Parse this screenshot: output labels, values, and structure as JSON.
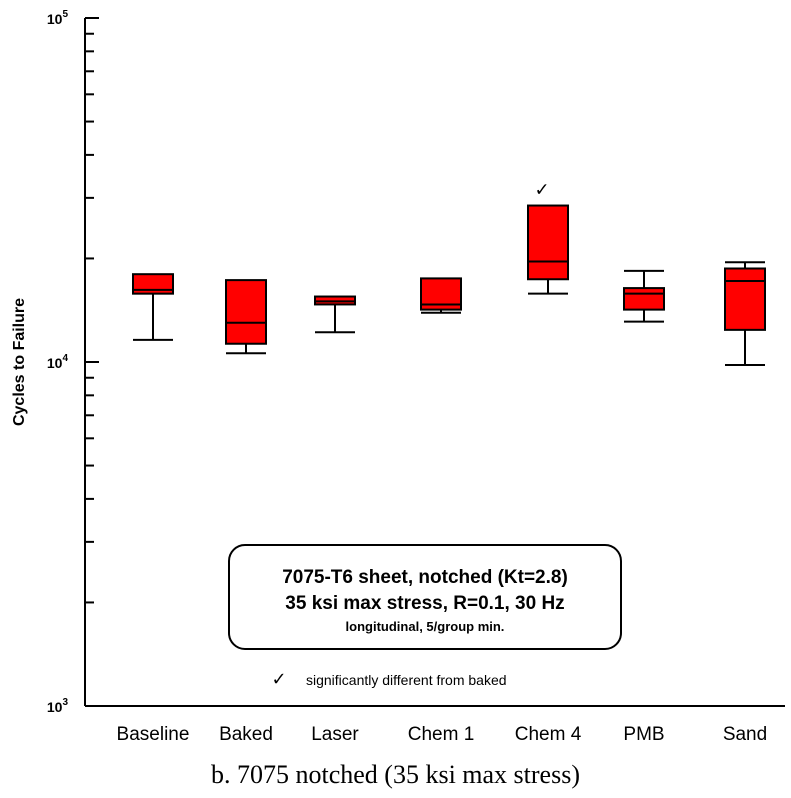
{
  "chart_data": {
    "type": "box",
    "ylabel": "Cycles to Failure",
    "yscale": "log",
    "ylim": [
      1000,
      100000
    ],
    "y_tick_labels": [
      {
        "value": 1000,
        "base": "10",
        "exp": "3"
      },
      {
        "value": 10000,
        "base": "10",
        "exp": "4"
      },
      {
        "value": 100000,
        "base": "10",
        "exp": "5"
      }
    ],
    "categories": [
      "Baseline",
      "Baked",
      "Laser",
      "Chem 1",
      "Chem 4",
      "PMB",
      "Sand"
    ],
    "boxes": [
      {
        "whisker_low": 11600,
        "q1": 15800,
        "median": 16200,
        "q3": 18000,
        "whisker_high": 18000
      },
      {
        "whisker_low": 10600,
        "q1": 11300,
        "median": 13000,
        "q3": 17300,
        "whisker_high": 17300
      },
      {
        "whisker_low": 12200,
        "q1": 14700,
        "median": 15000,
        "q3": 15500,
        "whisker_high": 15500
      },
      {
        "whisker_low": 13900,
        "q1": 14200,
        "median": 14700,
        "q3": 17500,
        "whisker_high": 17500
      },
      {
        "whisker_low": 15800,
        "q1": 17400,
        "median": 19600,
        "q3": 28500,
        "whisker_high": 28500
      },
      {
        "whisker_low": 13100,
        "q1": 14200,
        "median": 15800,
        "q3": 16400,
        "whisker_high": 18400
      },
      {
        "whisker_low": 9800,
        "q1": 12400,
        "median": 17200,
        "q3": 18700,
        "whisker_high": 19500
      }
    ],
    "significant": [
      "Chem 4"
    ],
    "box_color": "#ff0000",
    "check_symbol": "✓",
    "info_box": {
      "line1": "7075-T6 sheet, notched (Kt=2.8)",
      "line2": "35 ksi max stress, R=0.1, 30 Hz",
      "line3": "longitudinal, 5/group min."
    },
    "note": {
      "symbol": "✓",
      "text": "significantly different from baked"
    }
  },
  "caption": "b. 7075 notched (35 ksi max stress)"
}
